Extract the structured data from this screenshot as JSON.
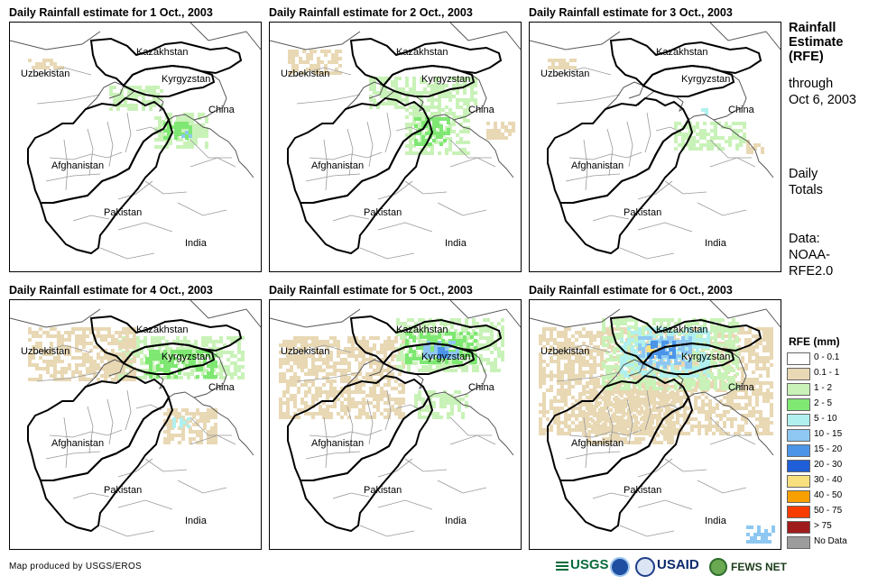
{
  "panels": [
    {
      "title": "Daily Rainfall estimate for 1 Oct., 2003",
      "rain_level": 1
    },
    {
      "title": "Daily Rainfall estimate for 2 Oct., 2003",
      "rain_level": 1
    },
    {
      "title": "Daily Rainfall estimate for 3 Oct., 2003",
      "rain_level": 0
    },
    {
      "title": "Daily Rainfall estimate for 4 Oct., 2003",
      "rain_level": 1
    },
    {
      "title": "Daily Rainfall estimate for 5 Oct., 2003",
      "rain_level": 2
    },
    {
      "title": "Daily Rainfall estimate for 6 Oct., 2003",
      "rain_level": 3
    }
  ],
  "map_labels": {
    "kazakhstan": "Kazakhstan",
    "kyrgyzstan": "Kyrgyzstan",
    "uzbekistan": "Uzbekistan",
    "china": "China",
    "afghanistan": "Afghanistan",
    "pakistan": "Pakistan",
    "india": "India"
  },
  "side": {
    "title": [
      "Rainfall",
      "Estimate",
      "(RFE)"
    ],
    "through": [
      "through",
      "Oct 6, 2003"
    ],
    "daily": [
      "Daily",
      "Totals"
    ],
    "data": [
      "Data:",
      "NOAA-",
      "RFE2.0"
    ]
  },
  "legend": {
    "title": "RFE (mm)",
    "items": [
      {
        "label": "0 - 0.1",
        "color": "#ffffff"
      },
      {
        "label": "0.1 - 1",
        "color": "#e8d8b4"
      },
      {
        "label": "1 - 2",
        "color": "#c9f2b8"
      },
      {
        "label": "2 - 5",
        "color": "#7ee872"
      },
      {
        "label": "5 - 10",
        "color": "#b0f0ee"
      },
      {
        "label": "10 - 15",
        "color": "#8ec8f2"
      },
      {
        "label": "15 - 20",
        "color": "#4c94e8"
      },
      {
        "label": "20 - 30",
        "color": "#1e5ed8"
      },
      {
        "label": "30 - 40",
        "color": "#f8e07e"
      },
      {
        "label": "40 - 50",
        "color": "#f8a000"
      },
      {
        "label": "50 - 75",
        "color": "#f83c00"
      },
      {
        "label": "> 75",
        "color": "#a01c1c"
      },
      {
        "label": "No Data",
        "color": "#9c9c9c"
      }
    ]
  },
  "credit": "Map produced by USGS/EROS",
  "logos": {
    "usgs": "USGS",
    "usaid": "USAID",
    "fewsnet": "FEWS NET"
  }
}
